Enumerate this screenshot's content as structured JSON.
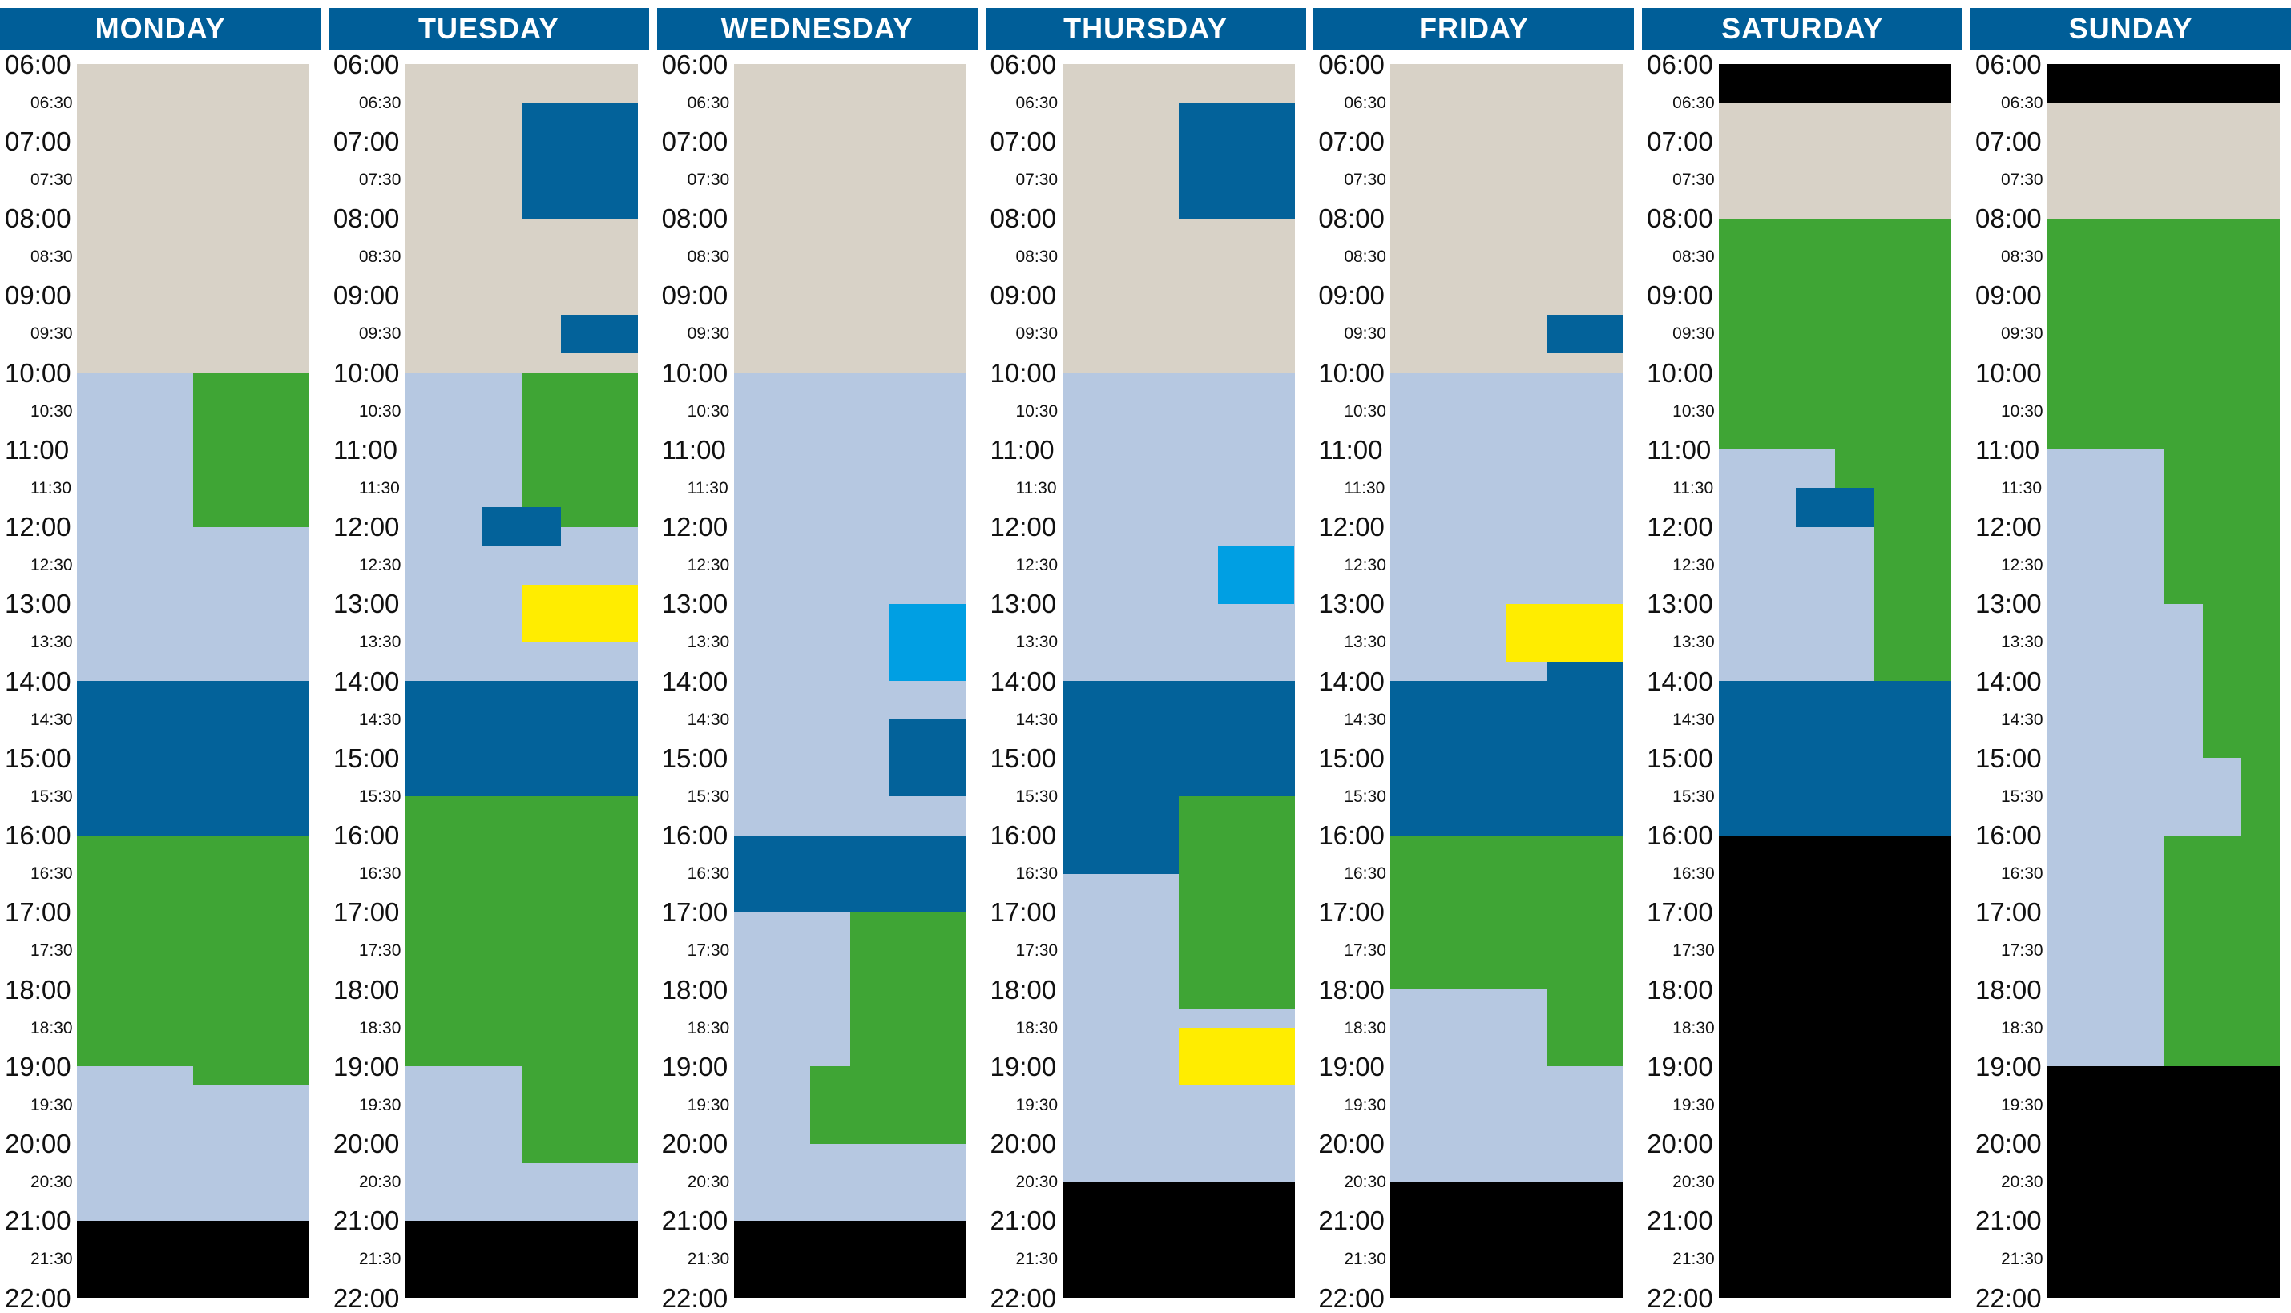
{
  "colors": {
    "header": "#005e98",
    "beige": "#d8d2c7",
    "light": "#b6c8e1",
    "dark": "#03629a",
    "green": "#3fa535",
    "cyan": "#009fe3",
    "yellow": "#ffed00",
    "black": "#000000"
  },
  "axis": {
    "start": "06:00",
    "end": "22:00",
    "labels": [
      "06:00",
      "06:30",
      "07:00",
      "07:30",
      "08:00",
      "08:30",
      "09:00",
      "09:30",
      "10:00",
      "10:30",
      "11:00",
      "11:30",
      "12:00",
      "12:30",
      "13:00",
      "13:30",
      "14:00",
      "14:30",
      "15:00",
      "15:30",
      "16:00",
      "16:30",
      "17:00",
      "17:30",
      "18:00",
      "18:30",
      "19:00",
      "19:30",
      "20:00",
      "20:30",
      "21:00",
      "21:30",
      "22:00"
    ]
  },
  "days": [
    {
      "name": "MONDAY",
      "blocks": [
        {
          "start": "06:00",
          "end": "10:00",
          "col0": 0,
          "col1": 1,
          "color": "beige"
        },
        {
          "start": "10:00",
          "end": "14:00",
          "col0": 0,
          "col1": 1,
          "color": "light"
        },
        {
          "start": "10:00",
          "end": "12:00",
          "col0": 0.5,
          "col1": 1,
          "color": "green"
        },
        {
          "start": "14:00",
          "end": "16:00",
          "col0": 0,
          "col1": 1,
          "color": "dark"
        },
        {
          "start": "16:00",
          "end": "19:00",
          "col0": 0,
          "col1": 1,
          "color": "green"
        },
        {
          "start": "19:00",
          "end": "21:00",
          "col0": 0,
          "col1": 1,
          "color": "light"
        },
        {
          "start": "19:00",
          "end": "19:15",
          "col0": 0.5,
          "col1": 1,
          "color": "green"
        },
        {
          "start": "21:00",
          "end": "22:00",
          "col0": 0,
          "col1": 1,
          "color": "black"
        }
      ]
    },
    {
      "name": "TUESDAY",
      "blocks": [
        {
          "start": "06:00",
          "end": "10:00",
          "col0": 0,
          "col1": 1,
          "color": "beige"
        },
        {
          "start": "06:30",
          "end": "08:00",
          "col0": 0.5,
          "col1": 1,
          "color": "dark"
        },
        {
          "start": "09:15",
          "end": "09:45",
          "col0": 0.67,
          "col1": 1,
          "color": "dark"
        },
        {
          "start": "10:00",
          "end": "14:00",
          "col0": 0,
          "col1": 1,
          "color": "light"
        },
        {
          "start": "10:00",
          "end": "12:00",
          "col0": 0.5,
          "col1": 1,
          "color": "green"
        },
        {
          "start": "11:45",
          "end": "12:15",
          "col0": 0.33,
          "col1": 0.67,
          "color": "dark"
        },
        {
          "start": "12:45",
          "end": "13:30",
          "col0": 0.5,
          "col1": 1,
          "color": "yellow"
        },
        {
          "start": "14:00",
          "end": "15:30",
          "col0": 0,
          "col1": 1,
          "color": "dark"
        },
        {
          "start": "15:30",
          "end": "19:00",
          "col0": 0,
          "col1": 1,
          "color": "green"
        },
        {
          "start": "19:00",
          "end": "21:00",
          "col0": 0,
          "col1": 1,
          "color": "light"
        },
        {
          "start": "19:00",
          "end": "20:15",
          "col0": 0.5,
          "col1": 1,
          "color": "green"
        },
        {
          "start": "21:00",
          "end": "22:00",
          "col0": 0,
          "col1": 1,
          "color": "black"
        }
      ]
    },
    {
      "name": "WEDNESDAY",
      "blocks": [
        {
          "start": "06:00",
          "end": "10:00",
          "col0": 0,
          "col1": 1,
          "color": "beige"
        },
        {
          "start": "10:00",
          "end": "16:00",
          "col0": 0,
          "col1": 1,
          "color": "light"
        },
        {
          "start": "13:00",
          "end": "14:00",
          "col0": 0.67,
          "col1": 1,
          "color": "cyan"
        },
        {
          "start": "14:30",
          "end": "15:30",
          "col0": 0.67,
          "col1": 1,
          "color": "dark"
        },
        {
          "start": "16:00",
          "end": "17:00",
          "col0": 0,
          "col1": 1,
          "color": "dark"
        },
        {
          "start": "17:00",
          "end": "21:00",
          "col0": 0,
          "col1": 1,
          "color": "light"
        },
        {
          "start": "17:00",
          "end": "19:00",
          "col0": 0.5,
          "col1": 1,
          "color": "green"
        },
        {
          "start": "19:00",
          "end": "20:00",
          "col0": 0.33,
          "col1": 1,
          "color": "green"
        },
        {
          "start": "21:00",
          "end": "22:00",
          "col0": 0,
          "col1": 1,
          "color": "black"
        }
      ]
    },
    {
      "name": "THURSDAY",
      "blocks": [
        {
          "start": "06:00",
          "end": "10:00",
          "col0": 0,
          "col1": 1,
          "color": "beige"
        },
        {
          "start": "06:30",
          "end": "08:00",
          "col0": 0.5,
          "col1": 1,
          "color": "dark"
        },
        {
          "start": "10:00",
          "end": "14:00",
          "col0": 0,
          "col1": 1,
          "color": "light"
        },
        {
          "start": "12:15",
          "end": "13:00",
          "col0": 0.67,
          "col1": 1,
          "color": "cyan"
        },
        {
          "start": "14:00",
          "end": "15:30",
          "col0": 0,
          "col1": 1,
          "color": "dark"
        },
        {
          "start": "15:30",
          "end": "16:30",
          "col0": 0,
          "col1": 0.5,
          "color": "dark"
        },
        {
          "start": "15:30",
          "end": "18:15",
          "col0": 0.5,
          "col1": 1,
          "color": "green"
        },
        {
          "start": "16:30",
          "end": "20:30",
          "col0": 0,
          "col1": 0.5,
          "color": "light"
        },
        {
          "start": "18:15",
          "end": "20:30",
          "col0": 0.5,
          "col1": 1,
          "color": "light"
        },
        {
          "start": "18:30",
          "end": "19:15",
          "col0": 0.5,
          "col1": 1,
          "color": "yellow"
        },
        {
          "start": "20:30",
          "end": "22:00",
          "col0": 0,
          "col1": 1,
          "color": "black"
        }
      ]
    },
    {
      "name": "FRIDAY",
      "blocks": [
        {
          "start": "06:00",
          "end": "10:00",
          "col0": 0,
          "col1": 1,
          "color": "beige"
        },
        {
          "start": "09:15",
          "end": "09:45",
          "col0": 0.67,
          "col1": 1,
          "color": "dark"
        },
        {
          "start": "10:00",
          "end": "14:00",
          "col0": 0,
          "col1": 1,
          "color": "light"
        },
        {
          "start": "13:00",
          "end": "13:45",
          "col0": 0.5,
          "col1": 1,
          "color": "yellow"
        },
        {
          "start": "13:45",
          "end": "14:00",
          "col0": 0.67,
          "col1": 1,
          "color": "dark"
        },
        {
          "start": "14:00",
          "end": "16:00",
          "col0": 0,
          "col1": 1,
          "color": "dark"
        },
        {
          "start": "16:00",
          "end": "18:00",
          "col0": 0,
          "col1": 1,
          "color": "green"
        },
        {
          "start": "18:00",
          "end": "20:30",
          "col0": 0,
          "col1": 1,
          "color": "light"
        },
        {
          "start": "18:00",
          "end": "19:00",
          "col0": 0.67,
          "col1": 1,
          "color": "green"
        },
        {
          "start": "20:30",
          "end": "22:00",
          "col0": 0,
          "col1": 1,
          "color": "black"
        }
      ]
    },
    {
      "name": "SATURDAY",
      "blocks": [
        {
          "start": "06:00",
          "end": "06:30",
          "col0": 0,
          "col1": 1,
          "color": "black"
        },
        {
          "start": "06:30",
          "end": "08:00",
          "col0": 0,
          "col1": 1,
          "color": "beige"
        },
        {
          "start": "08:00",
          "end": "11:00",
          "col0": 0,
          "col1": 1,
          "color": "green"
        },
        {
          "start": "11:00",
          "end": "14:00",
          "col0": 0,
          "col1": 1,
          "color": "light"
        },
        {
          "start": "11:00",
          "end": "14:00",
          "col0": 0.67,
          "col1": 1,
          "color": "green"
        },
        {
          "start": "11:00",
          "end": "11:30",
          "col0": 0.5,
          "col1": 0.67,
          "color": "green"
        },
        {
          "start": "11:30",
          "end": "12:00",
          "col0": 0.33,
          "col1": 0.67,
          "color": "dark"
        },
        {
          "start": "14:00",
          "end": "16:00",
          "col0": 0,
          "col1": 1,
          "color": "dark"
        },
        {
          "start": "16:00",
          "end": "22:00",
          "col0": 0,
          "col1": 1,
          "color": "black"
        }
      ]
    },
    {
      "name": "SUNDAY",
      "blocks": [
        {
          "start": "06:00",
          "end": "06:30",
          "col0": 0,
          "col1": 1,
          "color": "black"
        },
        {
          "start": "06:30",
          "end": "08:00",
          "col0": 0,
          "col1": 1,
          "color": "beige"
        },
        {
          "start": "08:00",
          "end": "11:00",
          "col0": 0,
          "col1": 1,
          "color": "green"
        },
        {
          "start": "11:00",
          "end": "19:00",
          "col0": 0,
          "col1": 1,
          "color": "light"
        },
        {
          "start": "11:00",
          "end": "13:00",
          "col0": 0.5,
          "col1": 1,
          "color": "green"
        },
        {
          "start": "13:00",
          "end": "15:00",
          "col0": 0.67,
          "col1": 1,
          "color": "green"
        },
        {
          "start": "15:00",
          "end": "16:00",
          "col0": 0.83,
          "col1": 1,
          "color": "green"
        },
        {
          "start": "16:00",
          "end": "19:00",
          "col0": 0.5,
          "col1": 1,
          "color": "green"
        },
        {
          "start": "19:00",
          "end": "22:00",
          "col0": 0,
          "col1": 1,
          "color": "black"
        }
      ]
    }
  ]
}
